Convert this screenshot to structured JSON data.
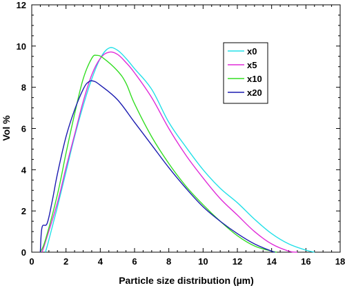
{
  "chart_data": {
    "type": "line",
    "title": "",
    "xlabel": "Particle size distribution (µm)",
    "ylabel": "Vol %",
    "xlim": [
      0,
      18
    ],
    "ylim": [
      0,
      12
    ],
    "xticks": [
      0,
      2,
      4,
      6,
      8,
      10,
      12,
      14,
      16,
      18
    ],
    "yticks": [
      0,
      2,
      4,
      6,
      8,
      10,
      12
    ],
    "grid": false,
    "legend_position": "top-right",
    "series": [
      {
        "name": "x0",
        "color": "#22e0e8",
        "points": [
          [
            0.8,
            0
          ],
          [
            1.0,
            0.6
          ],
          [
            1.5,
            2.2
          ],
          [
            2.0,
            3.9
          ],
          [
            2.5,
            5.6
          ],
          [
            3.0,
            7.1
          ],
          [
            3.5,
            8.4
          ],
          [
            4.0,
            9.4
          ],
          [
            4.5,
            9.9
          ],
          [
            5.0,
            9.8
          ],
          [
            5.5,
            9.4
          ],
          [
            6.0,
            8.9
          ],
          [
            7.0,
            7.9
          ],
          [
            8.0,
            6.3
          ],
          [
            9.0,
            5.1
          ],
          [
            10.0,
            4.0
          ],
          [
            11.0,
            3.1
          ],
          [
            12.0,
            2.4
          ],
          [
            13.0,
            1.6
          ],
          [
            14.0,
            0.9
          ],
          [
            15.0,
            0.4
          ],
          [
            16.0,
            0.1
          ],
          [
            16.5,
            0
          ]
        ]
      },
      {
        "name": "x5",
        "color": "#e02ad8",
        "points": [
          [
            0.6,
            0
          ],
          [
            0.8,
            0.5
          ],
          [
            1.5,
            2.4
          ],
          [
            2.0,
            4.1
          ],
          [
            2.5,
            5.7
          ],
          [
            3.0,
            7.3
          ],
          [
            3.5,
            8.6
          ],
          [
            4.0,
            9.4
          ],
          [
            4.5,
            9.7
          ],
          [
            5.0,
            9.6
          ],
          [
            5.5,
            9.2
          ],
          [
            6.0,
            8.7
          ],
          [
            7.0,
            7.5
          ],
          [
            8.0,
            6.0
          ],
          [
            9.0,
            4.7
          ],
          [
            10.0,
            3.6
          ],
          [
            11.0,
            2.6
          ],
          [
            12.0,
            1.8
          ],
          [
            13.0,
            1.0
          ],
          [
            14.0,
            0.4
          ],
          [
            15.0,
            0.05
          ],
          [
            15.5,
            0
          ]
        ]
      },
      {
        "name": "x10",
        "color": "#33dd22",
        "points": [
          [
            0.5,
            0
          ],
          [
            0.8,
            0.6
          ],
          [
            1.5,
            2.8
          ],
          [
            2.0,
            4.8
          ],
          [
            2.5,
            6.7
          ],
          [
            3.0,
            8.4
          ],
          [
            3.5,
            9.4
          ],
          [
            3.8,
            9.55
          ],
          [
            4.2,
            9.4
          ],
          [
            5.0,
            8.8
          ],
          [
            5.5,
            8.2
          ],
          [
            6.0,
            7.2
          ],
          [
            7.0,
            5.6
          ],
          [
            8.0,
            4.3
          ],
          [
            9.0,
            3.2
          ],
          [
            10.0,
            2.3
          ],
          [
            11.0,
            1.5
          ],
          [
            12.0,
            0.8
          ],
          [
            13.0,
            0.3
          ],
          [
            14.0,
            0.05
          ],
          [
            14.3,
            0
          ]
        ]
      },
      {
        "name": "x20",
        "color": "#1a1ab0",
        "points": [
          [
            0.5,
            0
          ],
          [
            0.6,
            1.2
          ],
          [
            0.9,
            1.4
          ],
          [
            1.2,
            2.5
          ],
          [
            1.5,
            3.8
          ],
          [
            2.0,
            5.6
          ],
          [
            2.5,
            6.9
          ],
          [
            3.0,
            7.9
          ],
          [
            3.3,
            8.25
          ],
          [
            3.6,
            8.3
          ],
          [
            4.0,
            8.1
          ],
          [
            5.0,
            7.4
          ],
          [
            6.0,
            6.3
          ],
          [
            7.0,
            5.2
          ],
          [
            8.0,
            4.1
          ],
          [
            9.0,
            3.1
          ],
          [
            10.0,
            2.2
          ],
          [
            11.0,
            1.5
          ],
          [
            12.0,
            0.9
          ],
          [
            13.0,
            0.4
          ],
          [
            14.0,
            0.05
          ],
          [
            14.2,
            0
          ]
        ]
      }
    ]
  }
}
